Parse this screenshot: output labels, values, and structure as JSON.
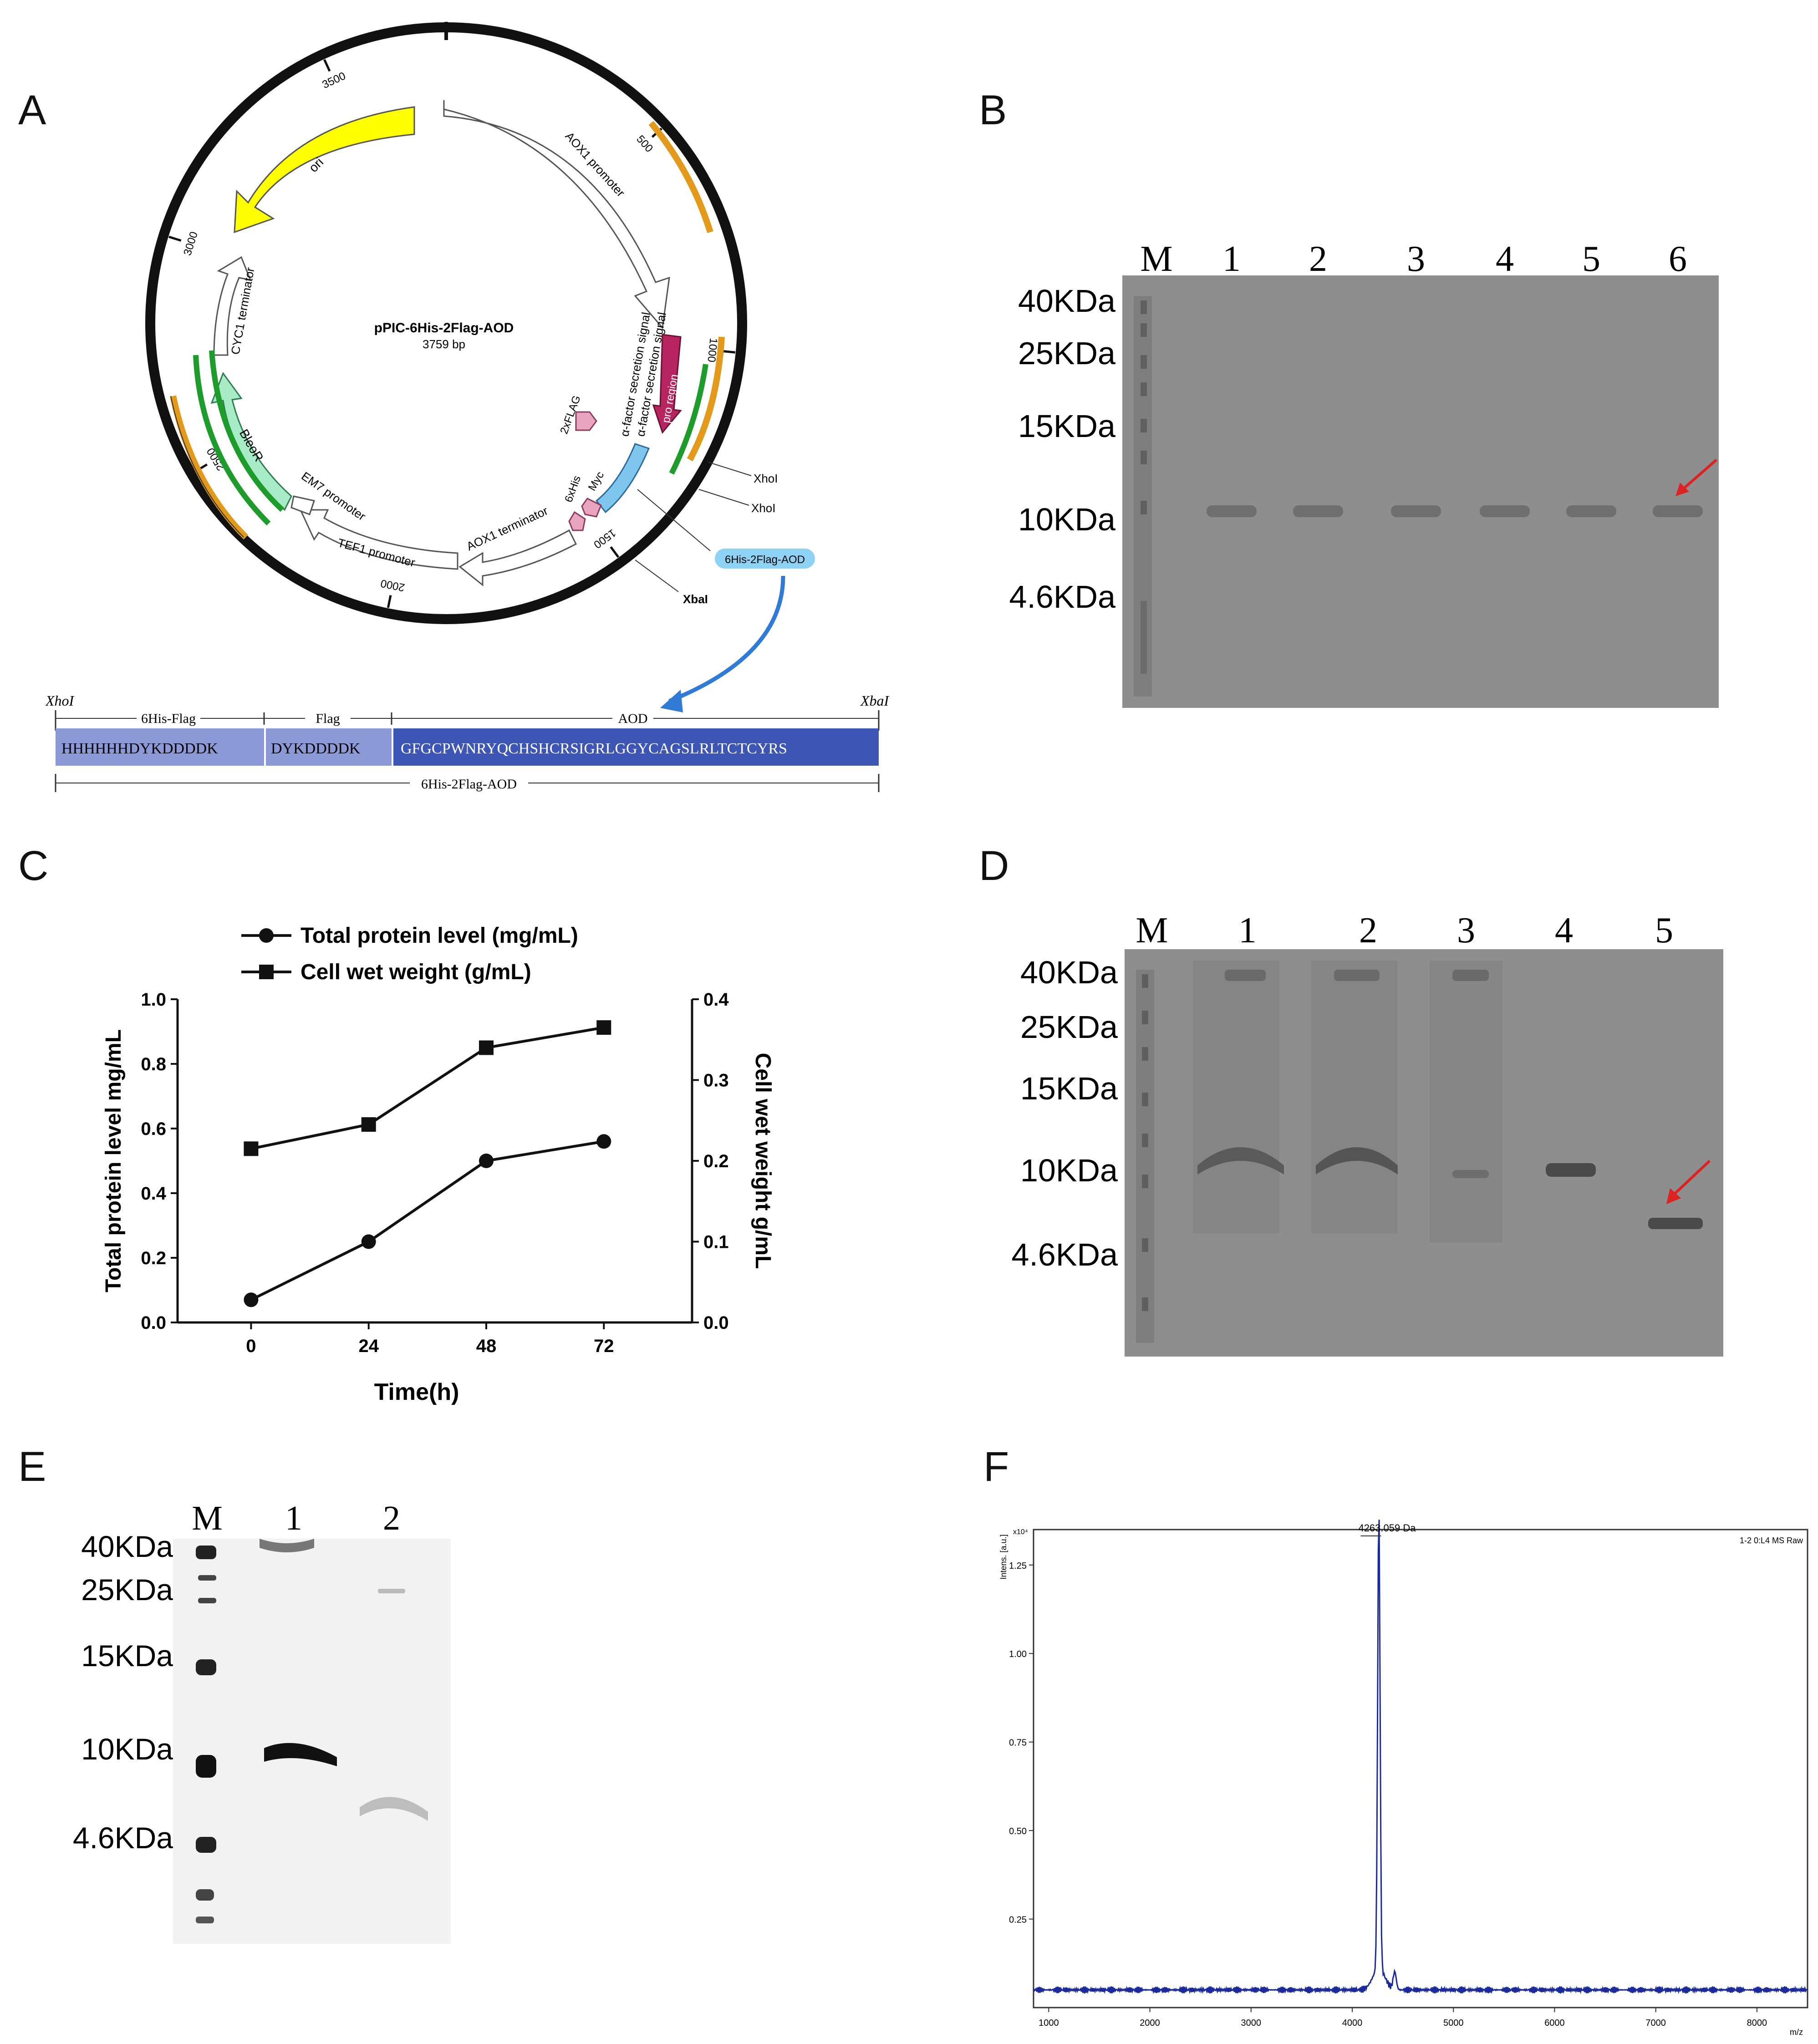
{
  "panels": {
    "A": {
      "letter": "A",
      "plasmid": {
        "name": "pPIC-6His-2Flag-AOD",
        "size": "3759 bp",
        "ticks": [
          "500",
          "1000",
          "1500",
          "2000",
          "2500",
          "3000",
          "3500"
        ],
        "features": {
          "aox1_promoter": "AOX1 promoter",
          "alpha_signal_1": "α-factor secretion signal",
          "alpha_signal_2": "α-factor secretion signal",
          "pro_region": "pro region",
          "flag2x": "2xFLAG",
          "his6x": "6xHis",
          "myc": "Myc",
          "aox1_terminator": "AOX1 terminator",
          "tef1_promoter": "TEF1 promoter",
          "em7_promoter": "EM7 promoter",
          "bleor": "BleoR",
          "cyc1_terminator": "CYC1 terminator",
          "ori": "ori",
          "xhoi_1": "XhoI",
          "xhoi_2": "XhoI",
          "xbai": "XbaI",
          "insert_label": "6His-2Flag-AOD"
        }
      },
      "construct": {
        "left_site": "XhoI",
        "right_site": "XbaI",
        "seg1_label": "6His-Flag",
        "seg2_label": "Flag",
        "seg3_label": "AOD",
        "seg1_seq": "HHHHHHDYKDDDDK",
        "seg2_seq": "DYKDDDDK",
        "seg3_seq": "GFGCPWNRYQCHSHCRSIGRLGGYCAGSLRLTCTCYRS",
        "total_label": "6His-2Flag-AOD"
      }
    },
    "B": {
      "letter": "B",
      "lane_labels": [
        "M",
        "1",
        "2",
        "3",
        "4",
        "5",
        "6"
      ],
      "markers": [
        "40KDa",
        "25KDa",
        "15KDa",
        "10KDa",
        "4.6KDa"
      ]
    },
    "C": {
      "letter": "C",
      "chart_data": {
        "type": "line",
        "x": [
          0,
          24,
          48,
          72
        ],
        "xlabel": "Time(h)",
        "ylabel": "Total protein level mg/mL",
        "y2label": "Cell wet weight g/mL",
        "ylim": [
          0,
          1.0
        ],
        "y2lim": [
          0,
          0.4
        ],
        "yticks": [
          "0.0",
          "0.2",
          "0.4",
          "0.6",
          "0.8",
          "1.0"
        ],
        "y2ticks": [
          "0.0",
          "0.1",
          "0.2",
          "0.3",
          "0.4"
        ],
        "xticks": [
          "0",
          "24",
          "48",
          "72"
        ],
        "legend_position": "top",
        "series": [
          {
            "name": "Total protein level (mg/mL)",
            "marker": "circle",
            "axis": "left",
            "values": [
              0.07,
              0.25,
              0.5,
              0.56
            ]
          },
          {
            "name": "Cell wet weight (g/mL)",
            "marker": "square",
            "axis": "right",
            "values": [
              0.215,
              0.245,
              0.34,
              0.365
            ]
          }
        ]
      }
    },
    "D": {
      "letter": "D",
      "lane_labels": [
        "M",
        "1",
        "2",
        "3",
        "4",
        "5"
      ],
      "markers": [
        "40KDa",
        "25KDa",
        "15KDa",
        "10KDa",
        "4.6KDa"
      ]
    },
    "E": {
      "letter": "E",
      "lane_labels": [
        "M",
        "1",
        "2"
      ],
      "markers": [
        "40KDa",
        "25KDa",
        "15KDa",
        "10KDa",
        "4.6KDa"
      ]
    },
    "F": {
      "letter": "F",
      "chart_data": {
        "type": "line",
        "ylabel": "Intens. [a.u.]",
        "y_exponent": "x10⁴",
        "xlabel": "m/z",
        "header_right": "1-2 0:L4 MS Raw",
        "peak_label": "4263.059 Da",
        "peak_mz": 4263.059,
        "peak_intensity": 1.3,
        "xlim": [
          850,
          8500
        ],
        "ylim": [
          0,
          1.35
        ],
        "xticks": [
          "1000",
          "2000",
          "3000",
          "4000",
          "5000",
          "6000",
          "7000",
          "8000"
        ],
        "yticks": [
          "0.25",
          "0.50",
          "0.75",
          "1.00",
          "1.25"
        ],
        "baseline": 0.05
      }
    }
  },
  "colors": {
    "gel_bg": "#8a8a8a",
    "arrow_red": "#dd2222",
    "seq_light": "#8b9ad6",
    "seq_dark": "#3d55b5",
    "spectrum_line": "#1a2a9a"
  }
}
